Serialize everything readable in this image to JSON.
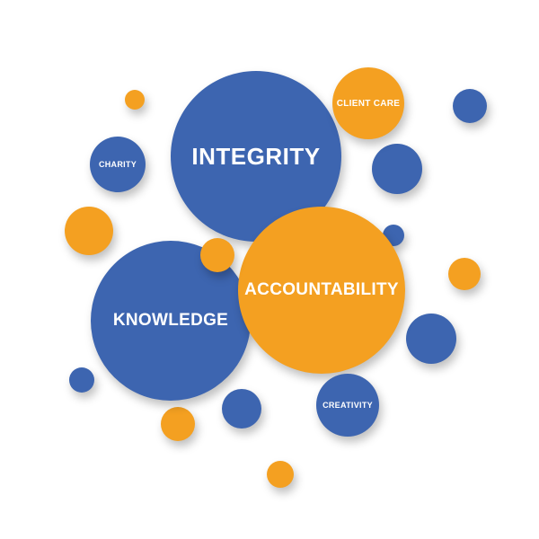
{
  "colors": {
    "primary": "#3d65b0",
    "accent": "#f4a021",
    "background": "#ffffff"
  },
  "labels": {
    "integrity": "INTEGRITY",
    "accountability": "ACCOUNTABILITY",
    "knowledge": "KNOWLEDGE",
    "client_care": "CLIENT CARE",
    "charity": "CHARITY",
    "creativity": "CREATIVITY"
  }
}
